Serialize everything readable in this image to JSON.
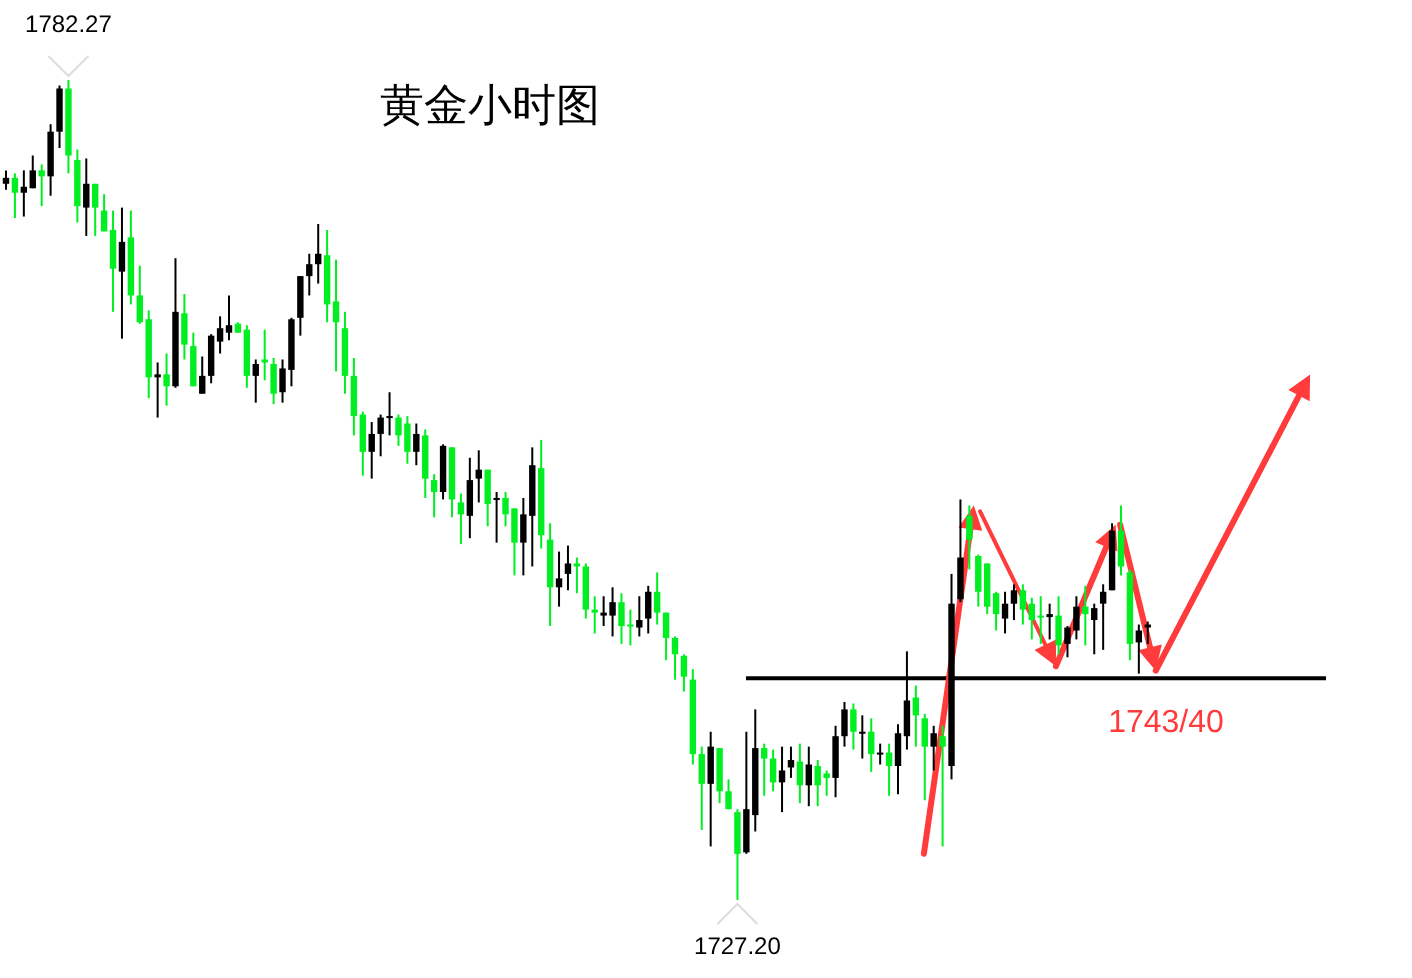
{
  "chart_data": {
    "type": "candlestick",
    "title": "黄金小时图",
    "categories": [
      null,
      null,
      null,
      null,
      null,
      null,
      null,
      null,
      null,
      null,
      null,
      null,
      null,
      null,
      null,
      null,
      null,
      null,
      null,
      null,
      null,
      null,
      null,
      null,
      null,
      null,
      null,
      null,
      null,
      null,
      null,
      null,
      null,
      null,
      null,
      null,
      null,
      null,
      null,
      null,
      null,
      null,
      null,
      null,
      null,
      null,
      null,
      null,
      null,
      null,
      null,
      null,
      null,
      null,
      null,
      null,
      null,
      null,
      null,
      null,
      null,
      null,
      null,
      null,
      null,
      null,
      null,
      null,
      null,
      null,
      null,
      null,
      null,
      null,
      null,
      null,
      null,
      null,
      null,
      null,
      null,
      null,
      null,
      null,
      null,
      null,
      null,
      null,
      null,
      null,
      null,
      null,
      null,
      null,
      null,
      null,
      null,
      null,
      null,
      null,
      null,
      null,
      null,
      null,
      null,
      null,
      null,
      null,
      null,
      null,
      null,
      null,
      null,
      null,
      null,
      null,
      null,
      null,
      null,
      null,
      null,
      null,
      null,
      null,
      null,
      null,
      null,
      null,
      null
    ],
    "ohlc": [
      [
        1775.3,
        1776.2,
        1774.9,
        1775.7
      ],
      [
        1775.7,
        1776.0,
        1773.0,
        1774.7
      ],
      [
        1774.7,
        1776.2,
        1773.1,
        1775.1
      ],
      [
        1775.0,
        1777.2,
        1775.0,
        1776.2
      ],
      [
        1776.2,
        1776.6,
        1773.8,
        1775.8
      ],
      [
        1775.8,
        1779.3,
        1774.5,
        1778.8
      ],
      [
        1778.8,
        1781.9,
        1777.7,
        1781.7
      ],
      [
        1781.7,
        1782.27,
        1776.0,
        1777.2
      ],
      [
        1776.9,
        1777.6,
        1772.7,
        1773.8
      ],
      [
        1773.7,
        1777.0,
        1771.8,
        1775.3
      ],
      [
        1775.3,
        1775.3,
        1771.8,
        1773.7
      ],
      [
        1773.5,
        1774.6,
        1772.1,
        1772.1
      ],
      [
        1772.2,
        1773.5,
        1766.7,
        1769.6
      ],
      [
        1769.4,
        1773.7,
        1764.9,
        1771.4
      ],
      [
        1771.7,
        1773.5,
        1767.2,
        1767.8
      ],
      [
        1767.8,
        1769.8,
        1765.9,
        1766.0
      ],
      [
        1766.2,
        1766.8,
        1760.9,
        1762.3
      ],
      [
        1762.3,
        1763.3,
        1759.6,
        1762.5
      ],
      [
        1762.5,
        1763.9,
        1760.4,
        1761.7
      ],
      [
        1761.7,
        1770.3,
        1761.6,
        1766.7
      ],
      [
        1766.6,
        1767.9,
        1763.5,
        1764.5
      ],
      [
        1764.4,
        1765.3,
        1761.7,
        1761.7
      ],
      [
        1761.2,
        1763.7,
        1761.2,
        1762.4
      ],
      [
        1762.4,
        1765.2,
        1761.9,
        1765.1
      ],
      [
        1764.7,
        1766.4,
        1763.9,
        1765.6
      ],
      [
        1765.3,
        1767.8,
        1764.8,
        1765.8
      ],
      [
        1765.9,
        1766.0,
        1765.3,
        1765.3
      ],
      [
        1765.5,
        1765.8,
        1761.6,
        1762.4
      ],
      [
        1762.4,
        1763.5,
        1760.6,
        1763.2
      ],
      [
        1763.5,
        1765.5,
        1762.1,
        1763.3
      ],
      [
        1763.2,
        1763.6,
        1760.5,
        1761.2
      ],
      [
        1761.3,
        1763.5,
        1760.6,
        1762.9
      ],
      [
        1762.8,
        1766.3,
        1761.7,
        1766.2
      ],
      [
        1766.3,
        1769.1,
        1765.1,
        1769.1
      ],
      [
        1769.1,
        1770.6,
        1767.8,
        1769.9
      ],
      [
        1769.9,
        1772.6,
        1768.6,
        1770.6
      ],
      [
        1770.5,
        1772.2,
        1766.0,
        1767.2
      ],
      [
        1767.4,
        1770.2,
        1762.7,
        1766.0
      ],
      [
        1765.6,
        1766.7,
        1761.2,
        1762.4
      ],
      [
        1762.4,
        1763.6,
        1758.4,
        1759.7
      ],
      [
        1759.8,
        1760.0,
        1755.7,
        1757.3
      ],
      [
        1757.3,
        1759.3,
        1755.5,
        1758.5
      ],
      [
        1758.5,
        1759.8,
        1757.0,
        1759.6
      ],
      [
        1759.6,
        1761.3,
        1758.4,
        1759.7
      ],
      [
        1759.6,
        1759.8,
        1757.7,
        1758.4
      ],
      [
        1759.2,
        1759.7,
        1756.5,
        1757.3
      ],
      [
        1757.3,
        1759.2,
        1756.4,
        1758.5
      ],
      [
        1758.4,
        1758.8,
        1754.2,
        1755.5
      ],
      [
        1755.4,
        1755.8,
        1752.9,
        1754.6
      ],
      [
        1754.6,
        1757.8,
        1754.1,
        1757.7
      ],
      [
        1757.6,
        1757.6,
        1752.9,
        1754.1
      ],
      [
        1753.9,
        1754.5,
        1751.1,
        1753.1
      ],
      [
        1753.0,
        1756.9,
        1751.5,
        1755.4
      ],
      [
        1755.5,
        1757.4,
        1753.9,
        1756.1
      ],
      [
        1756.1,
        1756.1,
        1752.3,
        1753.8
      ],
      [
        1754.1,
        1754.6,
        1751.2,
        1754.2
      ],
      [
        1754.2,
        1754.6,
        1752.3,
        1753.1
      ],
      [
        1753.5,
        1753.5,
        1749.0,
        1751.2
      ],
      [
        1751.2,
        1754.2,
        1749.0,
        1753.1
      ],
      [
        1753.0,
        1757.6,
        1749.6,
        1756.4
      ],
      [
        1756.2,
        1758.1,
        1750.8,
        1751.7
      ],
      [
        1751.4,
        1752.5,
        1745.6,
        1748.2
      ],
      [
        1748.2,
        1750.6,
        1746.9,
        1748.8
      ],
      [
        1749.1,
        1751.0,
        1748.0,
        1749.8
      ],
      [
        1749.8,
        1750.2,
        1747.8,
        1749.6
      ],
      [
        1749.6,
        1749.8,
        1746.1,
        1746.7
      ],
      [
        1746.7,
        1747.6,
        1745.1,
        1746.5
      ],
      [
        1746.3,
        1747.6,
        1745.6,
        1746.5
      ],
      [
        1746.3,
        1748.2,
        1744.9,
        1747.2
      ],
      [
        1747.2,
        1747.8,
        1744.4,
        1745.6
      ],
      [
        1745.7,
        1746.7,
        1744.3,
        1745.6
      ],
      [
        1745.5,
        1747.6,
        1744.9,
        1746.0
      ],
      [
        1746.1,
        1748.3,
        1745.1,
        1747.9
      ],
      [
        1747.9,
        1749.2,
        1745.7,
        1746.5
      ],
      [
        1746.5,
        1746.5,
        1743.3,
        1744.8
      ],
      [
        1744.8,
        1744.9,
        1742.0,
        1743.7
      ],
      [
        1743.6,
        1743.7,
        1741.2,
        1742.2
      ],
      [
        1742.0,
        1742.7,
        1736.3,
        1737.0
      ],
      [
        1737.0,
        1737.5,
        1731.9,
        1735.0
      ],
      [
        1735.0,
        1738.5,
        1730.8,
        1737.5
      ],
      [
        1737.4,
        1737.4,
        1733.7,
        1734.5
      ],
      [
        1734.5,
        1735.3,
        1733.3,
        1733.3
      ],
      [
        1733.1,
        1733.3,
        1727.2,
        1730.3
      ],
      [
        1730.4,
        1738.5,
        1730.3,
        1733.3
      ],
      [
        1732.9,
        1740.0,
        1731.8,
        1737.4
      ],
      [
        1737.4,
        1737.7,
        1734.2,
        1736.7
      ],
      [
        1736.7,
        1737.3,
        1734.5,
        1735.1
      ],
      [
        1735.1,
        1737.5,
        1733.1,
        1735.9
      ],
      [
        1736.1,
        1737.5,
        1735.4,
        1736.6
      ],
      [
        1736.5,
        1737.7,
        1733.7,
        1734.9
      ],
      [
        1734.9,
        1737.5,
        1733.5,
        1736.3
      ],
      [
        1736.2,
        1736.6,
        1733.5,
        1734.9
      ],
      [
        1735.7,
        1735.9,
        1734.2,
        1735.4
      ],
      [
        1735.4,
        1738.9,
        1734.1,
        1738.2
      ],
      [
        1738.2,
        1740.5,
        1737.5,
        1740.0
      ],
      [
        1740.0,
        1740.4,
        1737.3,
        1738.5
      ],
      [
        1738.4,
        1739.6,
        1736.7,
        1738.5
      ],
      [
        1738.5,
        1739.4,
        1735.8,
        1737.0
      ],
      [
        1737.0,
        1737.7,
        1736.3,
        1737.1
      ],
      [
        1737.1,
        1737.7,
        1734.2,
        1736.2
      ],
      [
        1736.2,
        1739.0,
        1734.3,
        1738.4
      ],
      [
        1738.2,
        1743.9,
        1737.3,
        1740.6
      ],
      [
        1740.8,
        1741.6,
        1737.5,
        1739.6
      ],
      [
        1739.4,
        1739.7,
        1733.9,
        1737.5
      ],
      [
        1737.5,
        1738.9,
        1735.9,
        1738.4
      ],
      [
        1738.2,
        1738.9,
        1730.8,
        1737.5
      ],
      [
        1736.2,
        1749.1,
        1735.3,
        1747.1
      ],
      [
        1747.4,
        1754.1,
        1747.2,
        1750.2
      ],
      [
        1753.0,
        1753.7,
        1749.4,
        1751.4
      ],
      [
        1750.3,
        1750.4,
        1746.9,
        1747.9
      ],
      [
        1749.8,
        1749.8,
        1746.4,
        1746.9
      ],
      [
        1747.8,
        1747.9,
        1745.3,
        1746.4
      ],
      [
        1746.1,
        1747.9,
        1745.1,
        1747.1
      ],
      [
        1747.1,
        1748.4,
        1746.0,
        1748.0
      ],
      [
        1748.0,
        1748.4,
        1745.7,
        1746.7
      ],
      [
        1747.1,
        1747.5,
        1744.7,
        1746.0
      ],
      [
        1746.3,
        1747.6,
        1744.4,
        1746.2
      ],
      [
        1746.2,
        1747.1,
        1744.7,
        1746.4
      ],
      [
        1746.3,
        1747.6,
        1743.7,
        1744.3
      ],
      [
        1744.4,
        1745.6,
        1743.5,
        1745.5
      ],
      [
        1745.3,
        1747.6,
        1744.7,
        1746.9
      ],
      [
        1746.9,
        1748.3,
        1744.3,
        1746.4
      ],
      [
        1746.0,
        1747.1,
        1743.7,
        1746.8
      ],
      [
        1747.1,
        1748.4,
        1744.0,
        1747.9
      ],
      [
        1748.0,
        1752.5,
        1748.0,
        1752.0
      ],
      [
        1752.0,
        1753.7,
        1749.0,
        1749.6
      ],
      [
        1749.2,
        1749.4,
        1743.3,
        1744.4
      ],
      [
        1744.5,
        1745.7,
        1742.4,
        1745.3
      ],
      [
        1745.5,
        1745.9,
        1744.4,
        1745.7
      ]
    ],
    "annotations": [
      {
        "text": "1782.27",
        "y": 1782.27
      },
      {
        "text": "1727.20",
        "y": 1727.2
      },
      "1743/40"
    ],
    "ref_lines": [
      {
        "axis": "y",
        "value": 1742.1,
        "color": "#000000"
      }
    ]
  }
}
